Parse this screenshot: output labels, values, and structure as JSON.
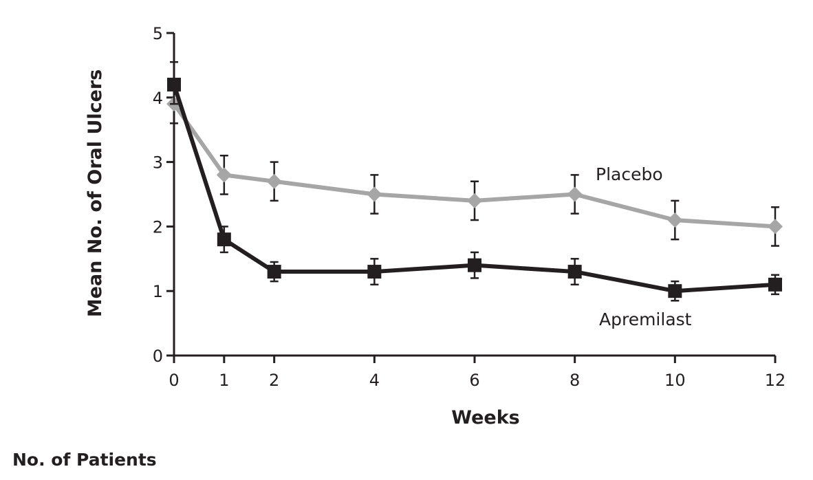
{
  "chart_data": {
    "type": "line",
    "xlabel": "Weeks",
    "ylabel": "Mean No. of Oral Ulcers",
    "x_ticks": [
      0,
      1,
      2,
      4,
      6,
      8,
      10,
      12
    ],
    "y_ticks": [
      0,
      1,
      2,
      3,
      4,
      5
    ],
    "xlim": [
      0,
      12
    ],
    "ylim": [
      0,
      5
    ],
    "grid": false,
    "series": [
      {
        "name": "Placebo",
        "color": "#a6a6a6",
        "marker": "diamond",
        "x": [
          0,
          1,
          2,
          4,
          6,
          8,
          10,
          12
        ],
        "y": [
          3.9,
          2.8,
          2.7,
          2.5,
          2.4,
          2.5,
          2.1,
          2.0
        ],
        "err_low": [
          3.6,
          2.5,
          2.4,
          2.2,
          2.1,
          2.2,
          1.8,
          1.7
        ],
        "err_high": [
          4.2,
          3.1,
          3.0,
          2.8,
          2.7,
          2.8,
          2.4,
          2.3
        ]
      },
      {
        "name": "Apremilast",
        "color": "#231f20",
        "marker": "square",
        "x": [
          0,
          1,
          2,
          4,
          6,
          8,
          10,
          12
        ],
        "y": [
          4.2,
          1.8,
          1.3,
          1.3,
          1.4,
          1.3,
          1.0,
          1.1
        ],
        "err_low": [
          3.9,
          1.6,
          1.15,
          1.1,
          1.2,
          1.1,
          0.85,
          0.95
        ],
        "err_high": [
          4.55,
          2.0,
          1.45,
          1.5,
          1.6,
          1.5,
          1.15,
          1.25
        ]
      }
    ]
  },
  "table": {
    "title": "No. of Patients"
  }
}
